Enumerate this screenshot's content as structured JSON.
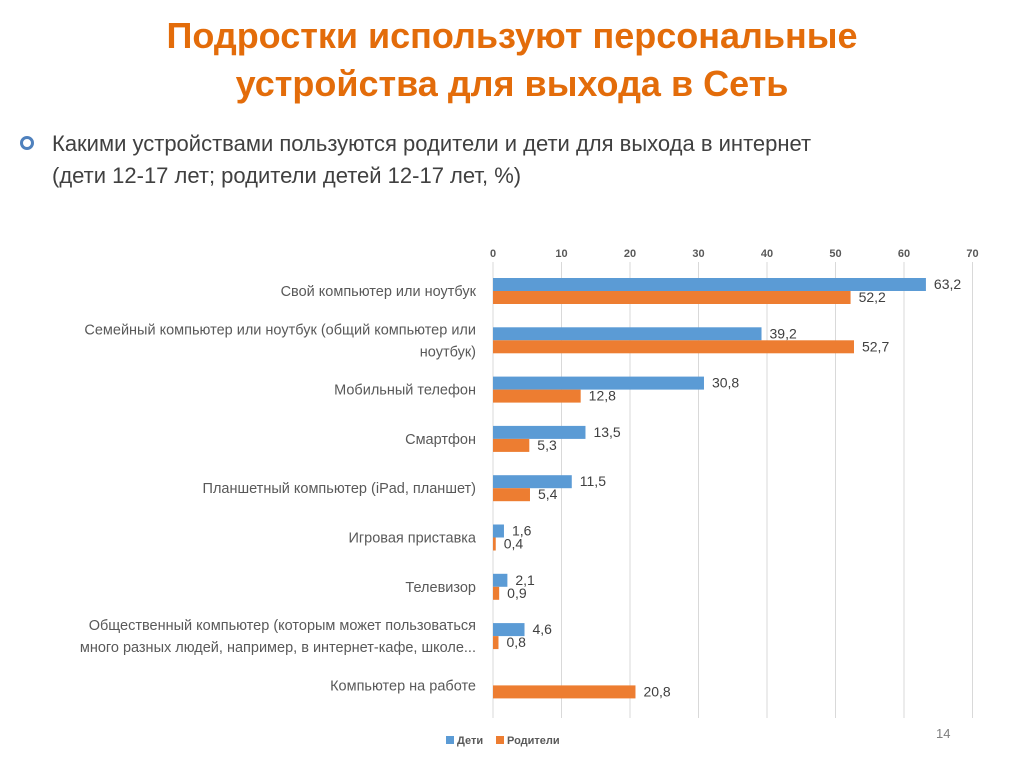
{
  "slide": {
    "title_line1": "Подростки используют персональные",
    "title_line2": "устройства для выхода в Сеть",
    "subtitle_line1": "Какими устройствами пользуются родители и дети для выхода в интернет",
    "subtitle_line2": "(дети 12-17 лет; родители детей 12-17 лет, %)",
    "page_number": "14"
  },
  "colors": {
    "title": "#e36c0a",
    "children": "#5b9bd5",
    "parents": "#ed7d31",
    "grid": "#d9d9d9",
    "text": "#595959"
  },
  "chart_data": {
    "type": "bar",
    "orientation": "horizontal",
    "xlim": [
      0,
      70
    ],
    "ticks": [
      0,
      10,
      20,
      30,
      40,
      50,
      60,
      70
    ],
    "axis_position": "top",
    "grid": true,
    "legend_position": "bottom-left",
    "categories": [
      [
        "Свой компьютер или ноутбук"
      ],
      [
        "Семейный компьютер или ноутбук (общий компьютер или",
        "ноутбук)"
      ],
      [
        "Мобильный телефон"
      ],
      [
        "Смартфон"
      ],
      [
        "Планшетный компьютер (iPad, планшет)"
      ],
      [
        "Игровая приставка"
      ],
      [
        "Телевизор"
      ],
      [
        "Общественный компьютер (которым может пользоваться",
        "много разных людей, например, в интернет-кафе, школе..."
      ],
      [
        "Компьютер на работе"
      ]
    ],
    "series": [
      {
        "name": "Дети",
        "color": "#5b9bd5",
        "values": [
          63.2,
          39.2,
          30.8,
          13.5,
          11.5,
          1.6,
          2.1,
          4.6,
          null
        ],
        "labels": [
          "63,2",
          "39,2",
          "30,8",
          "13,5",
          "11,5",
          "1,6",
          "2,1",
          "4,6",
          ""
        ]
      },
      {
        "name": "Родители",
        "color": "#ed7d31",
        "values": [
          52.2,
          52.7,
          12.8,
          5.3,
          5.4,
          0.4,
          0.9,
          0.8,
          20.8
        ],
        "labels": [
          "52,2",
          "52,7",
          "12,8",
          "5,3",
          "5,4",
          "0,4",
          "0,9",
          "0,8",
          "20,8"
        ]
      }
    ]
  }
}
